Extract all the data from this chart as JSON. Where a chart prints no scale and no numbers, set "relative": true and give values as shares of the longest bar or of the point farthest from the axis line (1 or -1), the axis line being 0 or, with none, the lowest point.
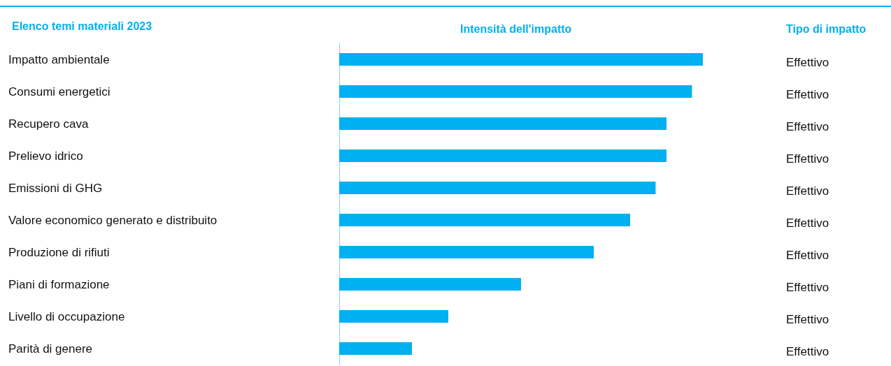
{
  "chart_data": {
    "type": "bar",
    "orientation": "horizontal",
    "relative": true,
    "title": "Elenco temi materiali 2023",
    "xlabel": "Intensità dell'impatto",
    "categories": [
      "Impatto ambientale",
      "Consumi energetici",
      "Recupero cava",
      "Prelievo idrico",
      "Emissioni di GHG",
      "Valore economico generato e distribuito",
      "Produzione di rifiuti",
      "Piani di formazione",
      "Livello di occupazione",
      "Parità di genere"
    ],
    "values": [
      1,
      0.97,
      0.9,
      0.9,
      0.87,
      0.8,
      0.7,
      0.5,
      0.3,
      0.2
    ],
    "color": "#00b0f0",
    "annotations": [
      "Tipo di impatto",
      "Effettivo",
      "Effettivo",
      "Effettivo",
      "Effettivo",
      "Effettivo",
      "Effettivo",
      "Effettivo",
      "Effettivo",
      "Effettivo",
      "Effettivo"
    ]
  }
}
